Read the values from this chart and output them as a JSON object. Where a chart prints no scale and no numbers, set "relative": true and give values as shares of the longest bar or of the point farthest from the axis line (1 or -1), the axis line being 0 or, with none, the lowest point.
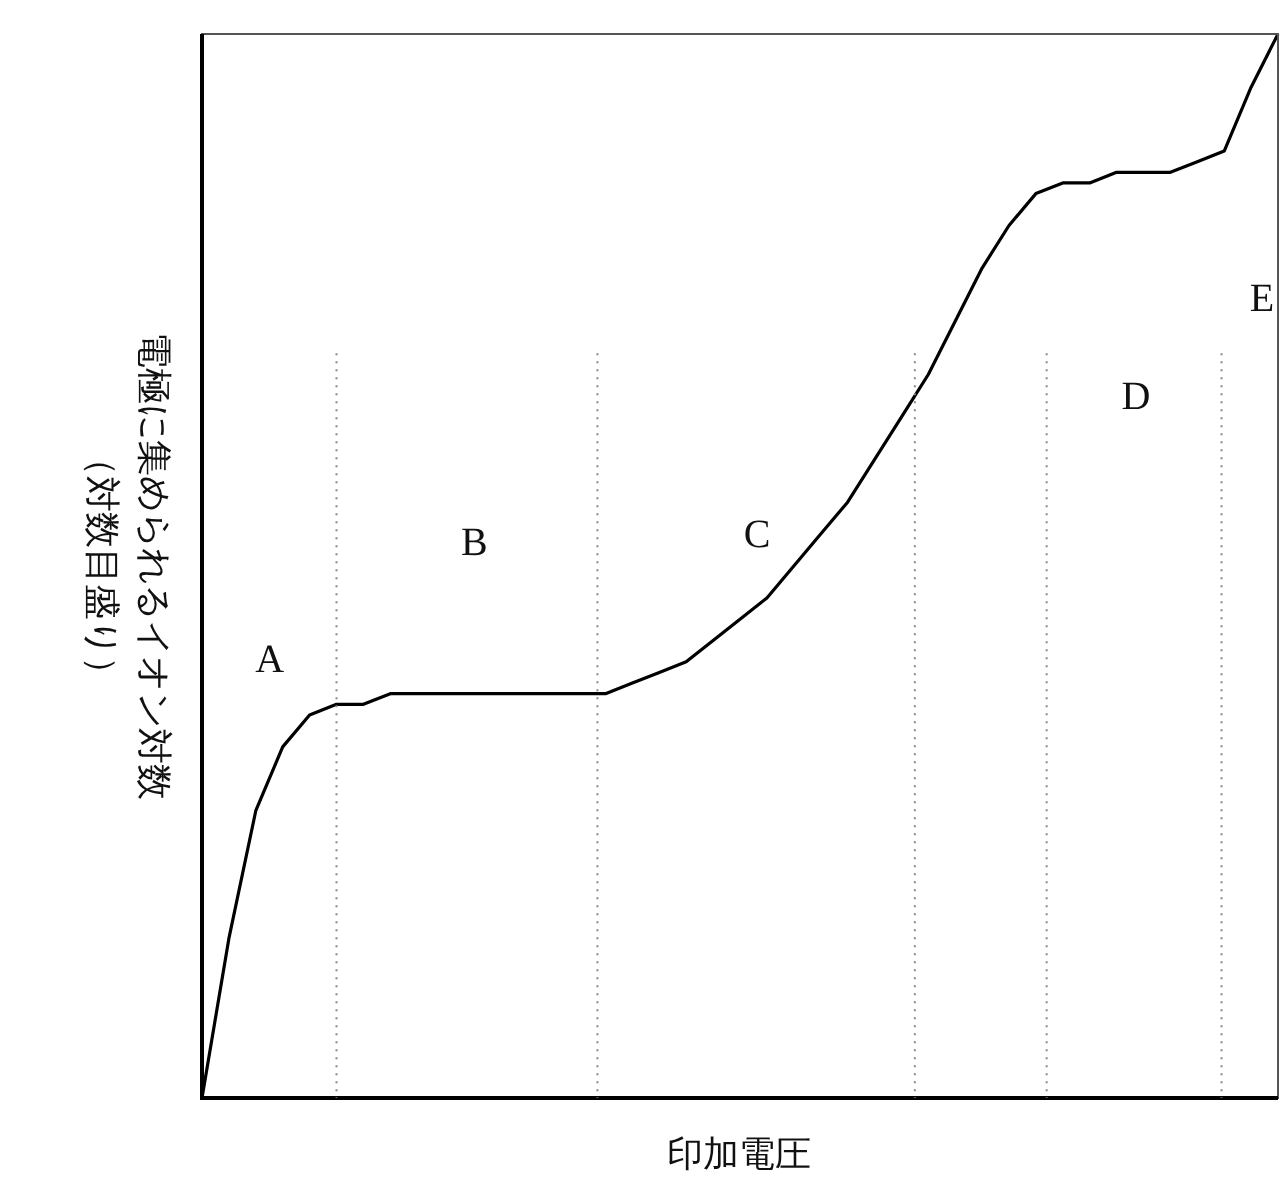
{
  "chart_data": {
    "type": "line",
    "relative": true,
    "xlabel": "印加電圧",
    "ylabel": "電極に集められるイオン対数（対数目盛り）",
    "categories": [
      null,
      null,
      null,
      null,
      null,
      null,
      null,
      null,
      null,
      null,
      null,
      null,
      null,
      null,
      null,
      null,
      null,
      null,
      null,
      null,
      null,
      null,
      null,
      null,
      null,
      null,
      null,
      null,
      null,
      null,
      null,
      null,
      null,
      null,
      null,
      null,
      null,
      null,
      null,
      null,
      null
    ],
    "values": [
      0,
      0.15,
      0.27,
      0.33,
      0.36,
      0.37,
      0.37,
      0.38,
      0.38,
      0.38,
      0.38,
      0.38,
      0.38,
      0.38,
      0.38,
      0.38,
      0.39,
      0.4,
      0.41,
      0.43,
      0.45,
      0.47,
      0.5,
      0.53,
      0.56,
      0.6,
      0.64,
      0.68,
      0.73,
      0.78,
      0.82,
      0.85,
      0.86,
      0.86,
      0.87,
      0.87,
      0.87,
      0.88,
      0.89,
      0.95,
      1
    ],
    "color": "#000000",
    "marker": "none",
    "line_style": "solid",
    "grid": "x",
    "annotations": [
      "A",
      "B",
      "C",
      "D",
      "E"
    ]
  }
}
